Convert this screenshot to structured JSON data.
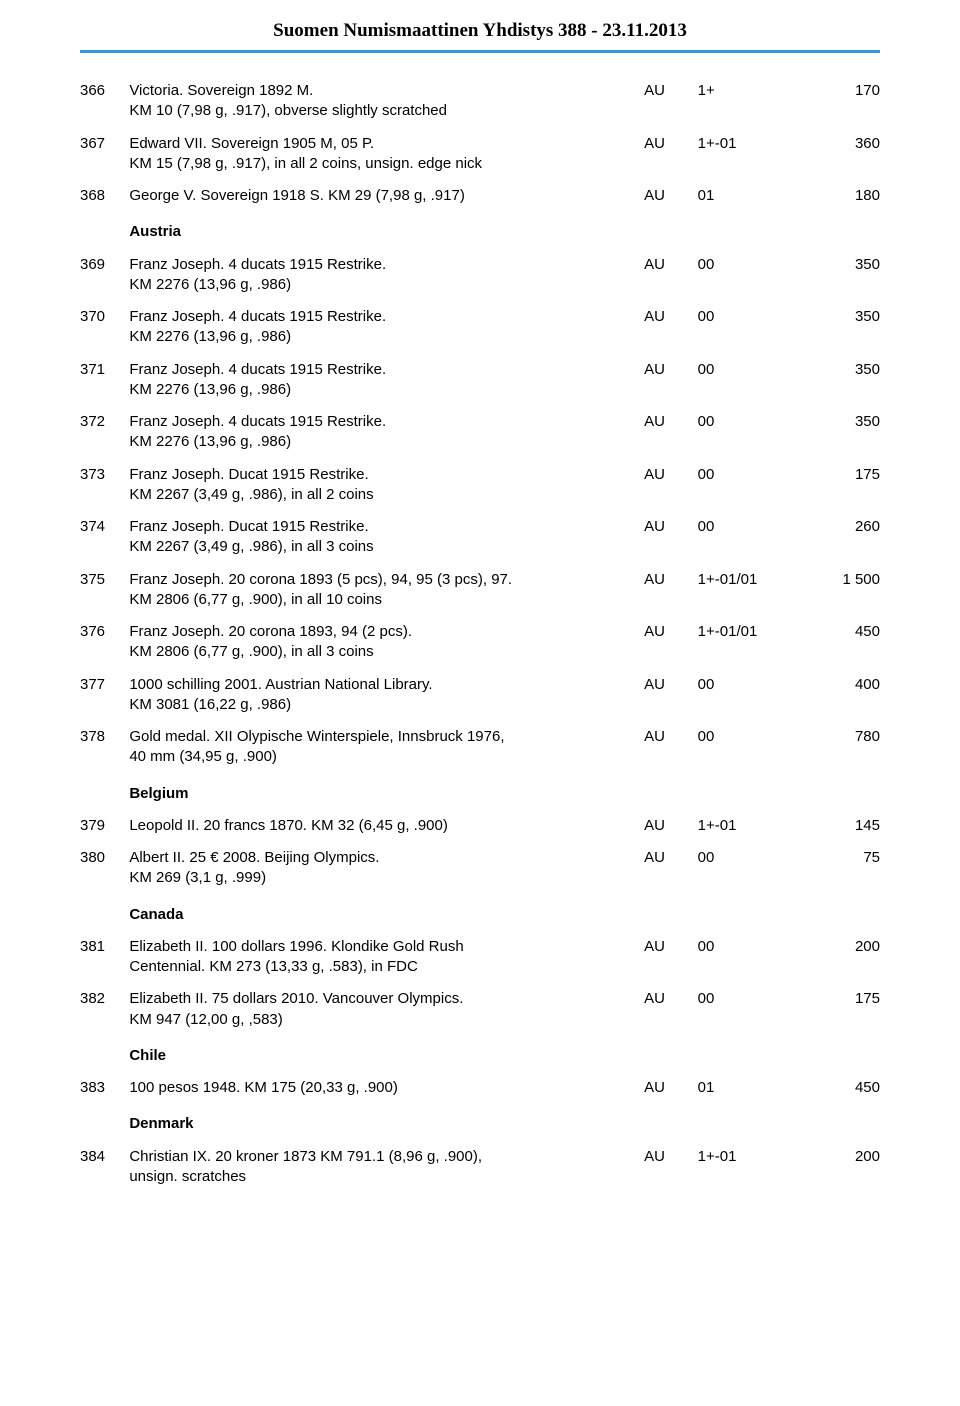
{
  "header": {
    "title": "Suomen Numismaattinen Yhdistys  388 - 23.11.2013"
  },
  "colors": {
    "divider": "#3399dd",
    "text": "#000000",
    "background": "#ffffff"
  },
  "lots": [
    {
      "num": "366",
      "desc": "Victoria. Sovereign 1892 M.\nKM 10 (7,98 g, .917), obverse slightly scratched",
      "mat": "AU",
      "grade": "1+",
      "price": "170"
    },
    {
      "num": "367",
      "desc": "Edward VII. Sovereign 1905 M, 05 P.\nKM 15 (7,98 g, .917), in all 2 coins, unsign. edge nick",
      "mat": "AU",
      "grade": "1+-01",
      "price": "360"
    },
    {
      "num": "368",
      "desc": "George V. Sovereign 1918 S. KM 29 (7,98 g, .917)",
      "mat": "AU",
      "grade": "01",
      "price": "180"
    },
    {
      "section": "Austria"
    },
    {
      "num": "369",
      "desc": "Franz Joseph. 4 ducats 1915 Restrike.\nKM 2276 (13,96 g, .986)",
      "mat": "AU",
      "grade": "00",
      "price": "350"
    },
    {
      "num": "370",
      "desc": "Franz Joseph. 4 ducats 1915 Restrike.\nKM 2276 (13,96 g, .986)",
      "mat": "AU",
      "grade": "00",
      "price": "350"
    },
    {
      "num": "371",
      "desc": "Franz Joseph. 4 ducats 1915 Restrike.\nKM 2276 (13,96 g, .986)",
      "mat": "AU",
      "grade": "00",
      "price": "350"
    },
    {
      "num": "372",
      "desc": "Franz Joseph. 4 ducats 1915 Restrike.\nKM 2276 (13,96 g, .986)",
      "mat": "AU",
      "grade": "00",
      "price": "350"
    },
    {
      "num": "373",
      "desc": "Franz Joseph. Ducat 1915 Restrike.\nKM 2267 (3,49 g, .986), in all 2 coins",
      "mat": "AU",
      "grade": "00",
      "price": "175"
    },
    {
      "num": "374",
      "desc": "Franz Joseph. Ducat 1915 Restrike.\nKM 2267 (3,49 g, .986), in all 3 coins",
      "mat": "AU",
      "grade": "00",
      "price": "260"
    },
    {
      "num": "375",
      "desc": "Franz Joseph. 20 corona 1893 (5 pcs), 94, 95 (3 pcs), 97.\nKM 2806 (6,77 g, .900), in all 10 coins",
      "mat": "AU",
      "grade": "1+-01/01",
      "price": "1 500"
    },
    {
      "num": "376",
      "desc": "Franz Joseph. 20 corona 1893, 94 (2 pcs).\nKM 2806 (6,77 g, .900), in all 3 coins",
      "mat": "AU",
      "grade": "1+-01/01",
      "price": "450"
    },
    {
      "num": "377",
      "desc": "1000 schilling 2001. Austrian National Library.\nKM 3081 (16,22 g, .986)",
      "mat": "AU",
      "grade": "00",
      "price": "400"
    },
    {
      "num": "378",
      "desc": "Gold medal. XII Olypische Winterspiele, Innsbruck 1976,\n40 mm (34,95 g, .900)",
      "mat": "AU",
      "grade": "00",
      "price": "780"
    },
    {
      "section": "Belgium"
    },
    {
      "num": "379",
      "desc": "Leopold II. 20 francs 1870. KM 32 (6,45 g, .900)",
      "mat": "AU",
      "grade": "1+-01",
      "price": "145"
    },
    {
      "num": "380",
      "desc": "Albert II. 25 € 2008. Beijing Olympics.\nKM 269 (3,1 g, .999)",
      "mat": "AU",
      "grade": "00",
      "price": "75"
    },
    {
      "section": "Canada"
    },
    {
      "num": "381",
      "desc": "Elizabeth II. 100 dollars 1996. Klondike Gold Rush\nCentennial. KM 273 (13,33 g, .583), in FDC",
      "mat": "AU",
      "grade": "00",
      "price": "200"
    },
    {
      "num": "382",
      "desc": "Elizabeth II. 75 dollars 2010. Vancouver Olympics.\nKM 947 (12,00 g, ,583)",
      "mat": "AU",
      "grade": "00",
      "price": "175"
    },
    {
      "section": "Chile"
    },
    {
      "num": "383",
      "desc": "100 pesos 1948. KM 175 (20,33 g, .900)",
      "mat": "AU",
      "grade": "01",
      "price": "450"
    },
    {
      "section": "Denmark"
    },
    {
      "num": "384",
      "desc": "Christian IX. 20 kroner 1873 KM 791.1 (8,96 g, .900),\nunsign. scratches",
      "mat": "AU",
      "grade": "1+-01",
      "price": "200"
    }
  ]
}
